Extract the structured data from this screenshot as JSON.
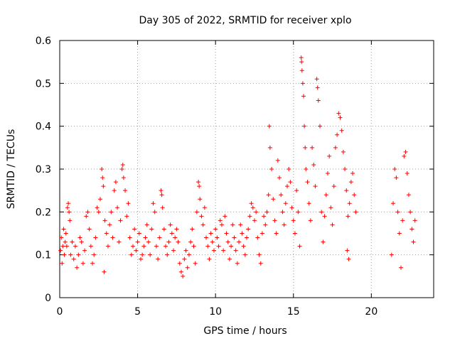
{
  "chart_data": {
    "type": "scatter",
    "title": "Day 305 of 2022, SRMTID for receiver xplo",
    "xlabel": "GPS time / hours",
    "ylabel": "SRMTID / TECUs",
    "xlim": [
      0,
      24
    ],
    "ylim": [
      0,
      0.6
    ],
    "xticks": [
      0,
      5,
      10,
      15,
      20
    ],
    "yticks": [
      0,
      0.1,
      0.2,
      0.3,
      0.4,
      0.5,
      0.6
    ],
    "xtick_labels": [
      "0",
      "5",
      "10",
      "15",
      "20"
    ],
    "ytick_labels": [
      "0",
      "0.1",
      "0.2",
      "0.3",
      "0.4",
      "0.5",
      "0.6"
    ],
    "grid": true,
    "marker": "plus",
    "color": "#ff0000",
    "series": [
      {
        "name": "SRMTID",
        "points": [
          [
            0.05,
            0.11
          ],
          [
            0.1,
            0.14
          ],
          [
            0.15,
            0.08
          ],
          [
            0.2,
            0.12
          ],
          [
            0.25,
            0.16
          ],
          [
            0.3,
            0.1
          ],
          [
            0.35,
            0.13
          ],
          [
            0.4,
            0.15
          ],
          [
            0.45,
            0.12
          ],
          [
            0.5,
            0.21
          ],
          [
            0.55,
            0.22
          ],
          [
            0.6,
            0.2
          ],
          [
            0.65,
            0.18
          ],
          [
            0.7,
            0.1
          ],
          [
            0.8,
            0.13
          ],
          [
            0.9,
            0.09
          ],
          [
            1.0,
            0.12
          ],
          [
            1.1,
            0.07
          ],
          [
            1.2,
            0.1
          ],
          [
            1.3,
            0.14
          ],
          [
            1.4,
            0.13
          ],
          [
            1.5,
            0.08
          ],
          [
            1.6,
            0.11
          ],
          [
            1.7,
            0.19
          ],
          [
            1.8,
            0.2
          ],
          [
            1.9,
            0.16
          ],
          [
            2.0,
            0.12
          ],
          [
            2.1,
            0.08
          ],
          [
            2.2,
            0.1
          ],
          [
            2.3,
            0.14
          ],
          [
            2.4,
            0.21
          ],
          [
            2.5,
            0.2
          ],
          [
            2.6,
            0.23
          ],
          [
            2.7,
            0.3
          ],
          [
            2.75,
            0.28
          ],
          [
            2.8,
            0.26
          ],
          [
            2.85,
            0.06
          ],
          [
            2.9,
            0.18
          ],
          [
            3.0,
            0.15
          ],
          [
            3.1,
            0.12
          ],
          [
            3.2,
            0.17
          ],
          [
            3.3,
            0.2
          ],
          [
            3.4,
            0.14
          ],
          [
            3.5,
            0.25
          ],
          [
            3.6,
            0.27
          ],
          [
            3.7,
            0.21
          ],
          [
            3.8,
            0.13
          ],
          [
            3.9,
            0.18
          ],
          [
            4.0,
            0.3
          ],
          [
            4.05,
            0.31
          ],
          [
            4.1,
            0.28
          ],
          [
            4.2,
            0.25
          ],
          [
            4.3,
            0.19
          ],
          [
            4.4,
            0.22
          ],
          [
            4.5,
            0.14
          ],
          [
            4.6,
            0.1
          ],
          [
            4.7,
            0.12
          ],
          [
            4.8,
            0.16
          ],
          [
            4.9,
            0.11
          ],
          [
            5.0,
            0.13
          ],
          [
            5.1,
            0.15
          ],
          [
            5.2,
            0.09
          ],
          [
            5.3,
            0.1
          ],
          [
            5.4,
            0.12
          ],
          [
            5.5,
            0.14
          ],
          [
            5.6,
            0.17
          ],
          [
            5.7,
            0.13
          ],
          [
            5.8,
            0.1
          ],
          [
            5.9,
            0.16
          ],
          [
            6.0,
            0.22
          ],
          [
            6.1,
            0.2
          ],
          [
            6.2,
            0.12
          ],
          [
            6.3,
            0.09
          ],
          [
            6.4,
            0.14
          ],
          [
            6.5,
            0.25
          ],
          [
            6.55,
            0.24
          ],
          [
            6.6,
            0.21
          ],
          [
            6.7,
            0.16
          ],
          [
            6.8,
            0.12
          ],
          [
            6.9,
            0.1
          ],
          [
            7.0,
            0.13
          ],
          [
            7.1,
            0.17
          ],
          [
            7.2,
            0.15
          ],
          [
            7.3,
            0.11
          ],
          [
            7.4,
            0.14
          ],
          [
            7.5,
            0.16
          ],
          [
            7.6,
            0.13
          ],
          [
            7.7,
            0.08
          ],
          [
            7.8,
            0.06
          ],
          [
            7.9,
            0.05
          ],
          [
            8.0,
            0.09
          ],
          [
            8.1,
            0.11
          ],
          [
            8.2,
            0.07
          ],
          [
            8.3,
            0.1
          ],
          [
            8.4,
            0.13
          ],
          [
            8.5,
            0.16
          ],
          [
            8.6,
            0.12
          ],
          [
            8.7,
            0.08
          ],
          [
            8.8,
            0.2
          ],
          [
            8.9,
            0.27
          ],
          [
            8.95,
            0.26
          ],
          [
            9.0,
            0.23
          ],
          [
            9.1,
            0.19
          ],
          [
            9.2,
            0.17
          ],
          [
            9.3,
            0.21
          ],
          [
            9.4,
            0.14
          ],
          [
            9.5,
            0.12
          ],
          [
            9.6,
            0.09
          ],
          [
            9.7,
            0.15
          ],
          [
            9.8,
            0.13
          ],
          [
            9.9,
            0.11
          ],
          [
            10.0,
            0.16
          ],
          [
            10.1,
            0.14
          ],
          [
            10.2,
            0.12
          ],
          [
            10.3,
            0.18
          ],
          [
            10.4,
            0.17
          ],
          [
            10.5,
            0.11
          ],
          [
            10.6,
            0.19
          ],
          [
            10.7,
            0.15
          ],
          [
            10.8,
            0.13
          ],
          [
            10.9,
            0.09
          ],
          [
            11.0,
            0.12
          ],
          [
            11.1,
            0.17
          ],
          [
            11.2,
            0.14
          ],
          [
            11.3,
            0.11
          ],
          [
            11.4,
            0.08
          ],
          [
            11.5,
            0.13
          ],
          [
            11.6,
            0.17
          ],
          [
            11.7,
            0.15
          ],
          [
            11.8,
            0.12
          ],
          [
            11.9,
            0.1
          ],
          [
            12.0,
            0.14
          ],
          [
            12.1,
            0.16
          ],
          [
            12.2,
            0.19
          ],
          [
            12.3,
            0.22
          ],
          [
            12.4,
            0.21
          ],
          [
            12.5,
            0.18
          ],
          [
            12.6,
            0.2
          ],
          [
            12.7,
            0.14
          ],
          [
            12.8,
            0.1
          ],
          [
            12.9,
            0.08
          ],
          [
            13.0,
            0.15
          ],
          [
            13.1,
            0.19
          ],
          [
            13.2,
            0.17
          ],
          [
            13.3,
            0.2
          ],
          [
            13.4,
            0.24
          ],
          [
            13.45,
            0.4
          ],
          [
            13.5,
            0.35
          ],
          [
            13.6,
            0.3
          ],
          [
            13.7,
            0.23
          ],
          [
            13.8,
            0.18
          ],
          [
            13.9,
            0.15
          ],
          [
            14.0,
            0.32
          ],
          [
            14.1,
            0.28
          ],
          [
            14.2,
            0.24
          ],
          [
            14.3,
            0.2
          ],
          [
            14.4,
            0.17
          ],
          [
            14.5,
            0.22
          ],
          [
            14.6,
            0.26
          ],
          [
            14.7,
            0.3
          ],
          [
            14.8,
            0.27
          ],
          [
            14.9,
            0.21
          ],
          [
            15.0,
            0.18
          ],
          [
            15.1,
            0.15
          ],
          [
            15.2,
            0.25
          ],
          [
            15.3,
            0.2
          ],
          [
            15.4,
            0.12
          ],
          [
            15.5,
            0.56
          ],
          [
            15.52,
            0.55
          ],
          [
            15.55,
            0.53
          ],
          [
            15.6,
            0.5
          ],
          [
            15.65,
            0.47
          ],
          [
            15.7,
            0.4
          ],
          [
            15.75,
            0.35
          ],
          [
            15.8,
            0.3
          ],
          [
            15.9,
            0.27
          ],
          [
            16.0,
            0.22
          ],
          [
            16.1,
            0.18
          ],
          [
            16.2,
            0.35
          ],
          [
            16.3,
            0.31
          ],
          [
            16.4,
            0.26
          ],
          [
            16.5,
            0.51
          ],
          [
            16.55,
            0.49
          ],
          [
            16.6,
            0.46
          ],
          [
            16.7,
            0.4
          ],
          [
            16.8,
            0.2
          ],
          [
            16.9,
            0.13
          ],
          [
            17.0,
            0.19
          ],
          [
            17.1,
            0.24
          ],
          [
            17.2,
            0.29
          ],
          [
            17.3,
            0.33
          ],
          [
            17.4,
            0.21
          ],
          [
            17.5,
            0.17
          ],
          [
            17.6,
            0.26
          ],
          [
            17.7,
            0.35
          ],
          [
            17.8,
            0.38
          ],
          [
            17.9,
            0.43
          ],
          [
            18.0,
            0.42
          ],
          [
            18.1,
            0.39
          ],
          [
            18.2,
            0.34
          ],
          [
            18.3,
            0.3
          ],
          [
            18.4,
            0.25
          ],
          [
            18.5,
            0.19
          ],
          [
            18.6,
            0.22
          ],
          [
            18.7,
            0.27
          ],
          [
            18.8,
            0.29
          ],
          [
            18.9,
            0.24
          ],
          [
            19.0,
            0.2
          ],
          [
            18.55,
            0.09
          ],
          [
            18.45,
            0.11
          ],
          [
            21.3,
            0.1
          ],
          [
            21.4,
            0.22
          ],
          [
            21.5,
            0.3
          ],
          [
            21.6,
            0.28
          ],
          [
            21.7,
            0.2
          ],
          [
            21.8,
            0.15
          ],
          [
            21.9,
            0.07
          ],
          [
            22.0,
            0.18
          ],
          [
            22.1,
            0.33
          ],
          [
            22.2,
            0.34
          ],
          [
            22.3,
            0.29
          ],
          [
            22.4,
            0.24
          ],
          [
            22.5,
            0.2
          ],
          [
            22.6,
            0.16
          ],
          [
            22.7,
            0.13
          ],
          [
            22.8,
            0.18
          ]
        ]
      }
    ]
  }
}
